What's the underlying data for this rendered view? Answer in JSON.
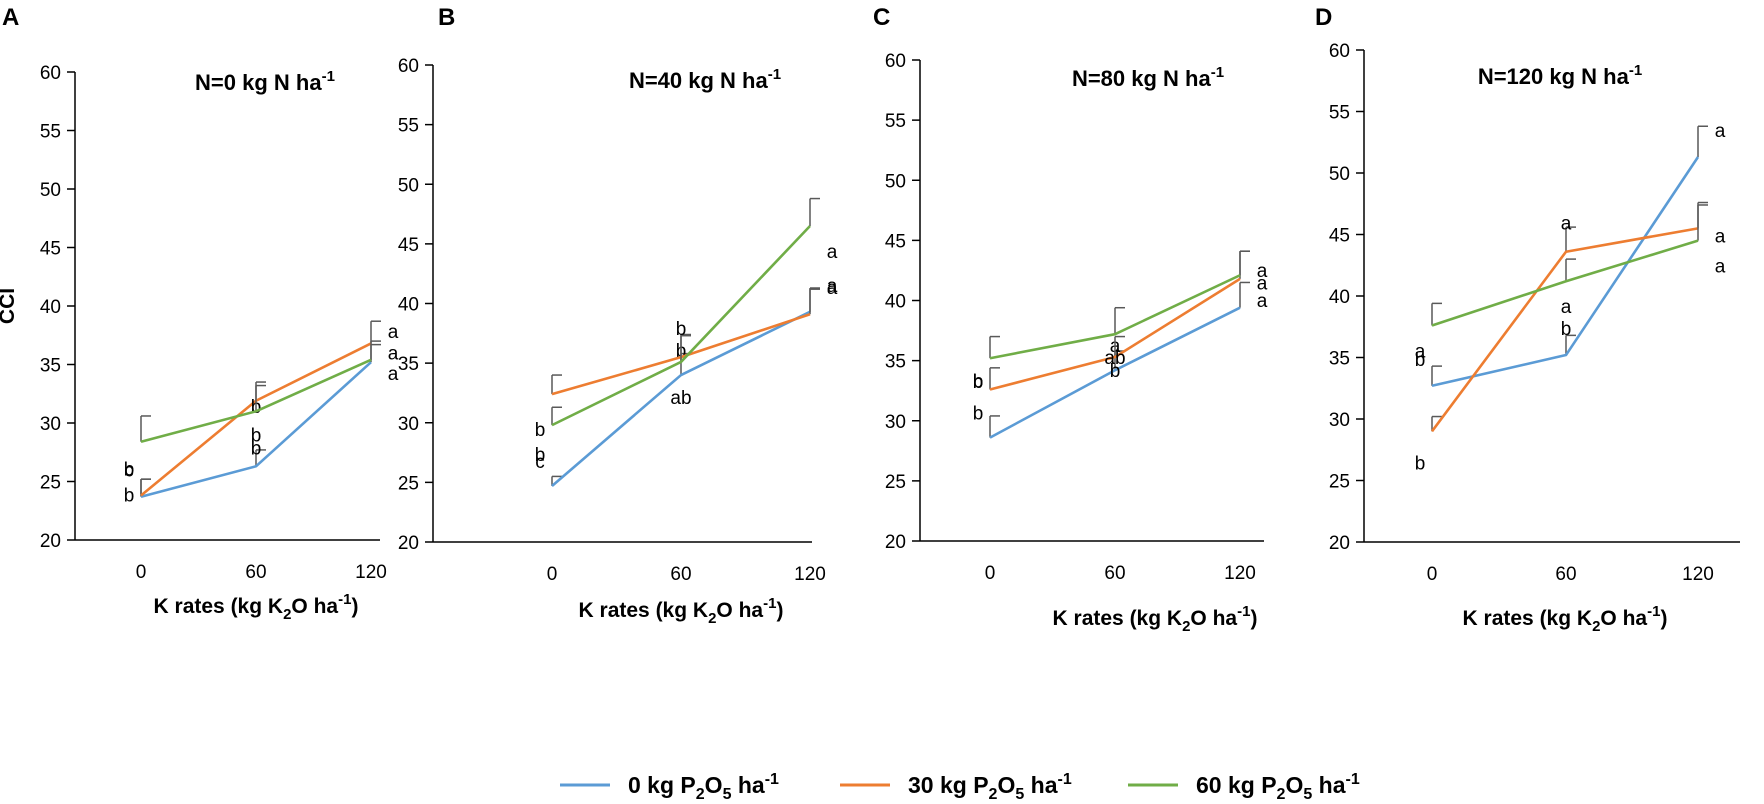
{
  "figure": {
    "legend": [
      {
        "label": "0 kg P2O5 ha-1",
        "prefix": "0 kg P",
        "sub1": "2",
        "mid": "O",
        "sub2": "5",
        "suffix": " ha",
        "sup": "-1",
        "color": "#5B9BD5"
      },
      {
        "label": "30 kg P2O5 ha-1",
        "prefix": "30 kg P",
        "sub1": "2",
        "mid": "O",
        "sub2": "5",
        "suffix": " ha",
        "sup": "-1",
        "color": "#ED7D31"
      },
      {
        "label": "60 kg P2O5 ha-1",
        "prefix": "60 kg P",
        "sub1": "2",
        "mid": "O",
        "sub2": "5",
        "suffix": " ha",
        "sup": "-1",
        "color": "#70AD47"
      }
    ],
    "colors": {
      "axis": "#000000",
      "errorbar": "#595959"
    }
  },
  "chart_data": [
    {
      "type": "line",
      "panel": "A",
      "title": "N=0 kg N ha-1",
      "title_main": "N=0 kg N ha",
      "title_sup": "-1",
      "ylabel": "CCI",
      "xlabel": "K rates (kg K2O ha-1)",
      "xlabel_parts": {
        "pre": "K rates (kg K",
        "sub": "2",
        "mid": "O ha",
        "sup": "-1",
        "post": ")"
      },
      "categories": [
        "0",
        "60",
        "120"
      ],
      "ylim": [
        20,
        60
      ],
      "yticks": [
        "20",
        "25",
        "30",
        "35",
        "40",
        "45",
        "50",
        "55",
        "60"
      ],
      "series": [
        {
          "name": "0 kg P2O5 ha-1",
          "values": [
            23.7,
            26.3,
            35.2
          ],
          "errors": [
            1.5,
            1.4,
            1.5
          ],
          "letters": [
            "c",
            "b",
            "a"
          ]
        },
        {
          "name": "30 kg P2O5 ha-1",
          "values": [
            23.8,
            31.9,
            36.8
          ],
          "errors": [
            1.4,
            1.6,
            1.9
          ],
          "letters": [
            "b",
            "b",
            "a"
          ]
        },
        {
          "name": "60 kg P2O5 ha-1",
          "values": [
            28.4,
            31.0,
            35.4
          ],
          "errors": [
            2.2,
            2.2,
            1.6
          ],
          "letters": [
            "b",
            "b",
            "a"
          ]
        }
      ]
    },
    {
      "type": "line",
      "panel": "B",
      "title": "N=40 kg N ha-1",
      "title_main": "N=40 kg N ha",
      "title_sup": "-1",
      "ylabel": "",
      "xlabel": "K rates (kg K2O ha-1)",
      "xlabel_parts": {
        "pre": "K rates (kg K",
        "sub": "2",
        "mid": "O ha",
        "sup": "-1",
        "post": ")"
      },
      "categories": [
        "0",
        "60",
        "120"
      ],
      "ylim": [
        20,
        60
      ],
      "yticks": [
        "20",
        "25",
        "30",
        "35",
        "40",
        "45",
        "50",
        "55",
        "60"
      ],
      "series": [
        {
          "name": "0 kg P2O5 ha-1",
          "values": [
            24.7,
            34.0,
            39.3
          ],
          "errors": [
            0.8,
            1.8,
            2.0
          ],
          "letters": [
            "c",
            "b",
            "a"
          ]
        },
        {
          "name": "30 kg P2O5 ha-1",
          "values": [
            32.4,
            35.5,
            39.1
          ],
          "errors": [
            1.6,
            1.9,
            2.1
          ],
          "letters": [
            "b",
            "b",
            "a"
          ]
        },
        {
          "name": "60 kg P2O5 ha-1",
          "values": [
            29.8,
            35.1,
            46.5
          ],
          "errors": [
            1.5,
            2.2,
            2.3
          ],
          "letters": [
            "b",
            "ab",
            "a"
          ]
        }
      ]
    },
    {
      "type": "line",
      "panel": "C",
      "title": "N=80 kg N ha-1",
      "title_main": "N=80 kg N ha",
      "title_sup": "-1",
      "ylabel": "",
      "xlabel": "K rates (kg K2O ha-1)",
      "xlabel_parts": {
        "pre": "K rates (kg K",
        "sub": "2",
        "mid": "O ha",
        "sup": "-1",
        "post": ")"
      },
      "categories": [
        "0",
        "60",
        "120"
      ],
      "ylim": [
        20,
        60
      ],
      "yticks": [
        "20",
        "25",
        "30",
        "35",
        "40",
        "45",
        "50",
        "55",
        "60"
      ],
      "series": [
        {
          "name": "0 kg P2O5 ha-1",
          "values": [
            28.6,
            34.2,
            39.4
          ],
          "errors": [
            1.8,
            1.6,
            2.1
          ],
          "letters": [
            "b",
            "a",
            "a"
          ]
        },
        {
          "name": "30 kg P2O5 ha-1",
          "values": [
            32.6,
            35.3,
            41.8
          ],
          "errors": [
            1.8,
            1.7,
            2.3
          ],
          "letters": [
            "b",
            "b",
            "a"
          ]
        },
        {
          "name": "60 kg P2O5 ha-1",
          "values": [
            35.2,
            37.2,
            42.1
          ],
          "errors": [
            1.8,
            2.2,
            2.0
          ],
          "letters": [
            "b",
            "ab",
            "a"
          ]
        }
      ]
    },
    {
      "type": "line",
      "panel": "D",
      "title": "N=120 kg N ha-1",
      "title_main": "N=120 kg N ha",
      "title_sup": "-1",
      "ylabel": "",
      "xlabel": "K rates (kg K2O ha-1)",
      "xlabel_parts": {
        "pre": "K rates (kg K",
        "sub": "2",
        "mid": "O ha",
        "sup": "-1",
        "post": ")"
      },
      "categories": [
        "0",
        "60",
        "120"
      ],
      "ylim": [
        20,
        60
      ],
      "yticks": [
        "20",
        "25",
        "30",
        "35",
        "40",
        "45",
        "50",
        "55",
        "60"
      ],
      "series": [
        {
          "name": "0 kg P2O5 ha-1",
          "values": [
            32.7,
            35.2,
            51.3
          ],
          "errors": [
            1.6,
            1.6,
            2.5
          ],
          "letters": [
            "b",
            "b",
            "a"
          ]
        },
        {
          "name": "30 kg P2O5 ha-1",
          "values": [
            29.0,
            43.6,
            45.5
          ],
          "errors": [
            1.2,
            2.0,
            2.1
          ],
          "letters": [
            "b",
            "a",
            "a"
          ]
        },
        {
          "name": "60 kg P2O5 ha-1",
          "values": [
            37.6,
            41.2,
            44.5
          ],
          "errors": [
            1.8,
            1.8,
            2.9
          ],
          "letters": [
            "a",
            "a",
            "a"
          ]
        }
      ]
    }
  ]
}
